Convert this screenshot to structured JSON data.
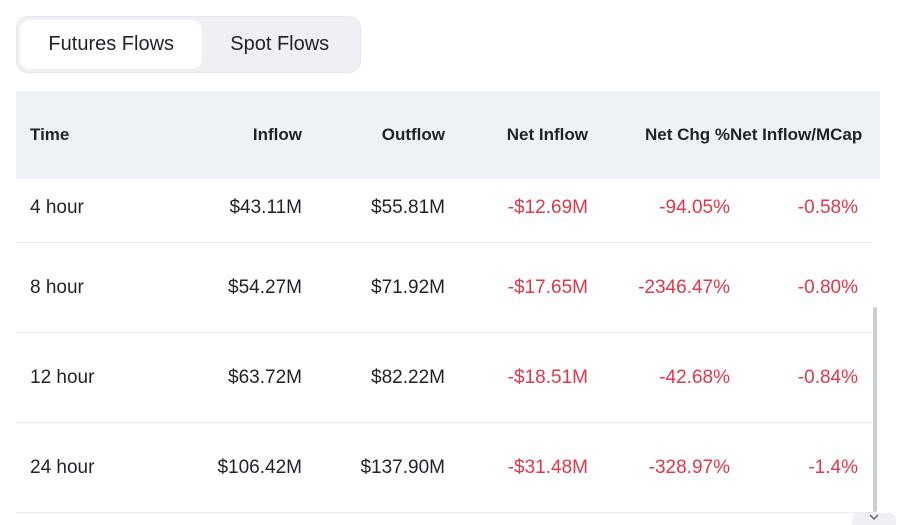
{
  "tabs": [
    {
      "label": "Futures Flows",
      "active": true
    },
    {
      "label": "Spot Flows",
      "active": false
    }
  ],
  "table": {
    "headers": {
      "time": "Time",
      "inflow": "Inflow",
      "outflow": "Outflow",
      "net_inflow": "Net Inflow",
      "net_chg": "Net Chg %",
      "net_inflow_mcap": "Net Inflow/MCap"
    },
    "rows": [
      {
        "time": "4 hour",
        "inflow": "$43.11M",
        "outflow": "$55.81M",
        "net_inflow": "-$12.69M",
        "net_chg": "-94.05%",
        "net_inflow_mcap": "-0.58%"
      },
      {
        "time": "8 hour",
        "inflow": "$54.27M",
        "outflow": "$71.92M",
        "net_inflow": "-$17.65M",
        "net_chg": "-2346.47%",
        "net_inflow_mcap": "-0.80%"
      },
      {
        "time": "12 hour",
        "inflow": "$63.72M",
        "outflow": "$82.22M",
        "net_inflow": "-$18.51M",
        "net_chg": "-42.68%",
        "net_inflow_mcap": "-0.84%"
      },
      {
        "time": "24 hour",
        "inflow": "$106.42M",
        "outflow": "$137.90M",
        "net_inflow": "-$31.48M",
        "net_chg": "-328.97%",
        "net_inflow_mcap": "-1.4%"
      }
    ]
  },
  "colors": {
    "negative": "#e0374b",
    "header_bg": "#eef1f5",
    "text": "#1e2329"
  },
  "icons": {
    "corner": "chevron-down-icon"
  }
}
